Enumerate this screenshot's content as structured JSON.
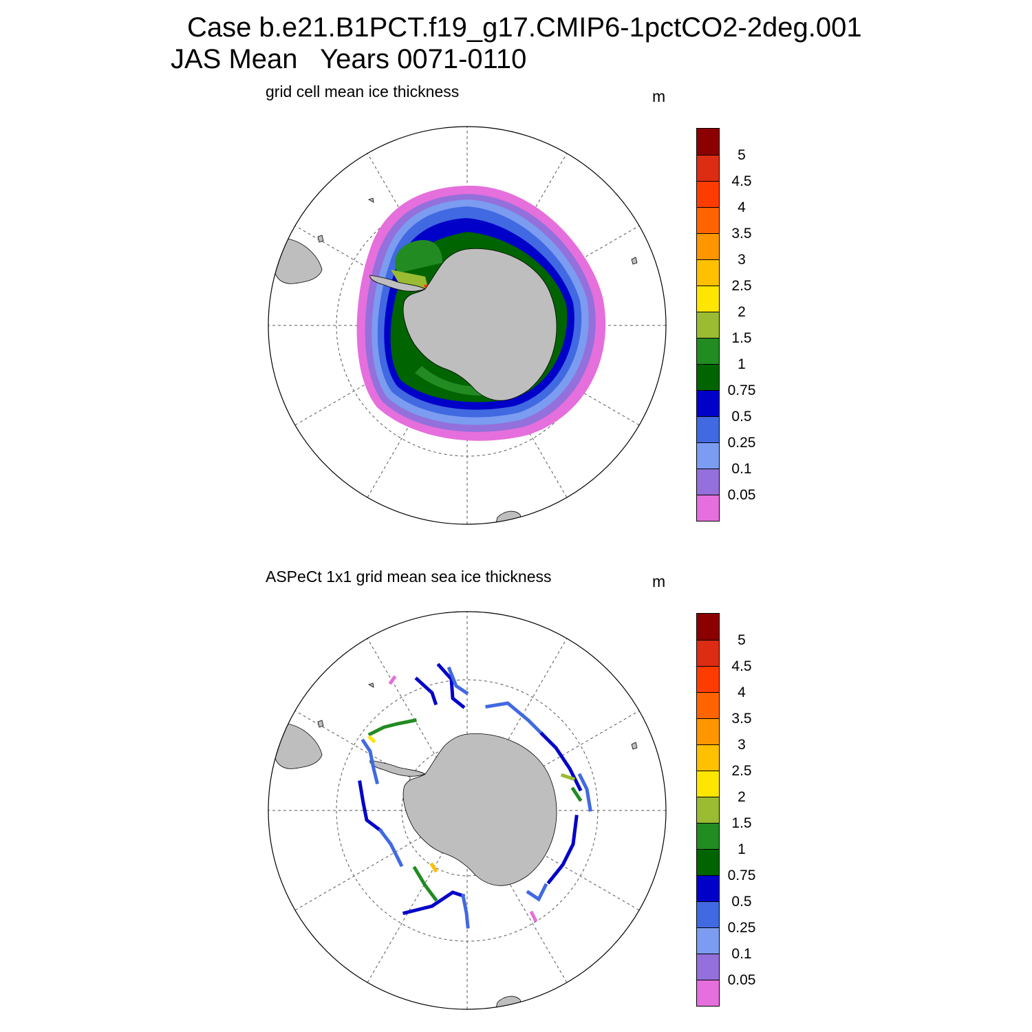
{
  "header": {
    "line1": "Case b.e21.B1PCT.f19_g17.CMIP6-1pctCO2-2deg.001",
    "line2": "JAS Mean   Years 0071-0110"
  },
  "panels": [
    {
      "title": "grid cell mean ice thickness",
      "units": "m",
      "field": "model"
    },
    {
      "title": "ASPeCt 1x1 grid mean sea ice thickness",
      "units": "m",
      "field": "observations"
    }
  ],
  "colorbar": {
    "labels": [
      "5",
      "4.5",
      "4",
      "3.5",
      "3",
      "2.5",
      "2",
      "1.5",
      "1",
      "0.75",
      "0.5",
      "0.25",
      "0.1",
      "0.05"
    ],
    "colors": [
      "#8b0000",
      "#dc2c14",
      "#ff3c00",
      "#ff6400",
      "#ff9600",
      "#ffc000",
      "#ffe600",
      "#9abb32",
      "#228b22",
      "#006400",
      "#0000c8",
      "#4169e1",
      "#7b9cf0",
      "#9370db",
      "#e56fdc"
    ]
  },
  "map_colors": {
    "land": "#bebebe",
    "coast": "#000000",
    "grid": "#555555"
  }
}
